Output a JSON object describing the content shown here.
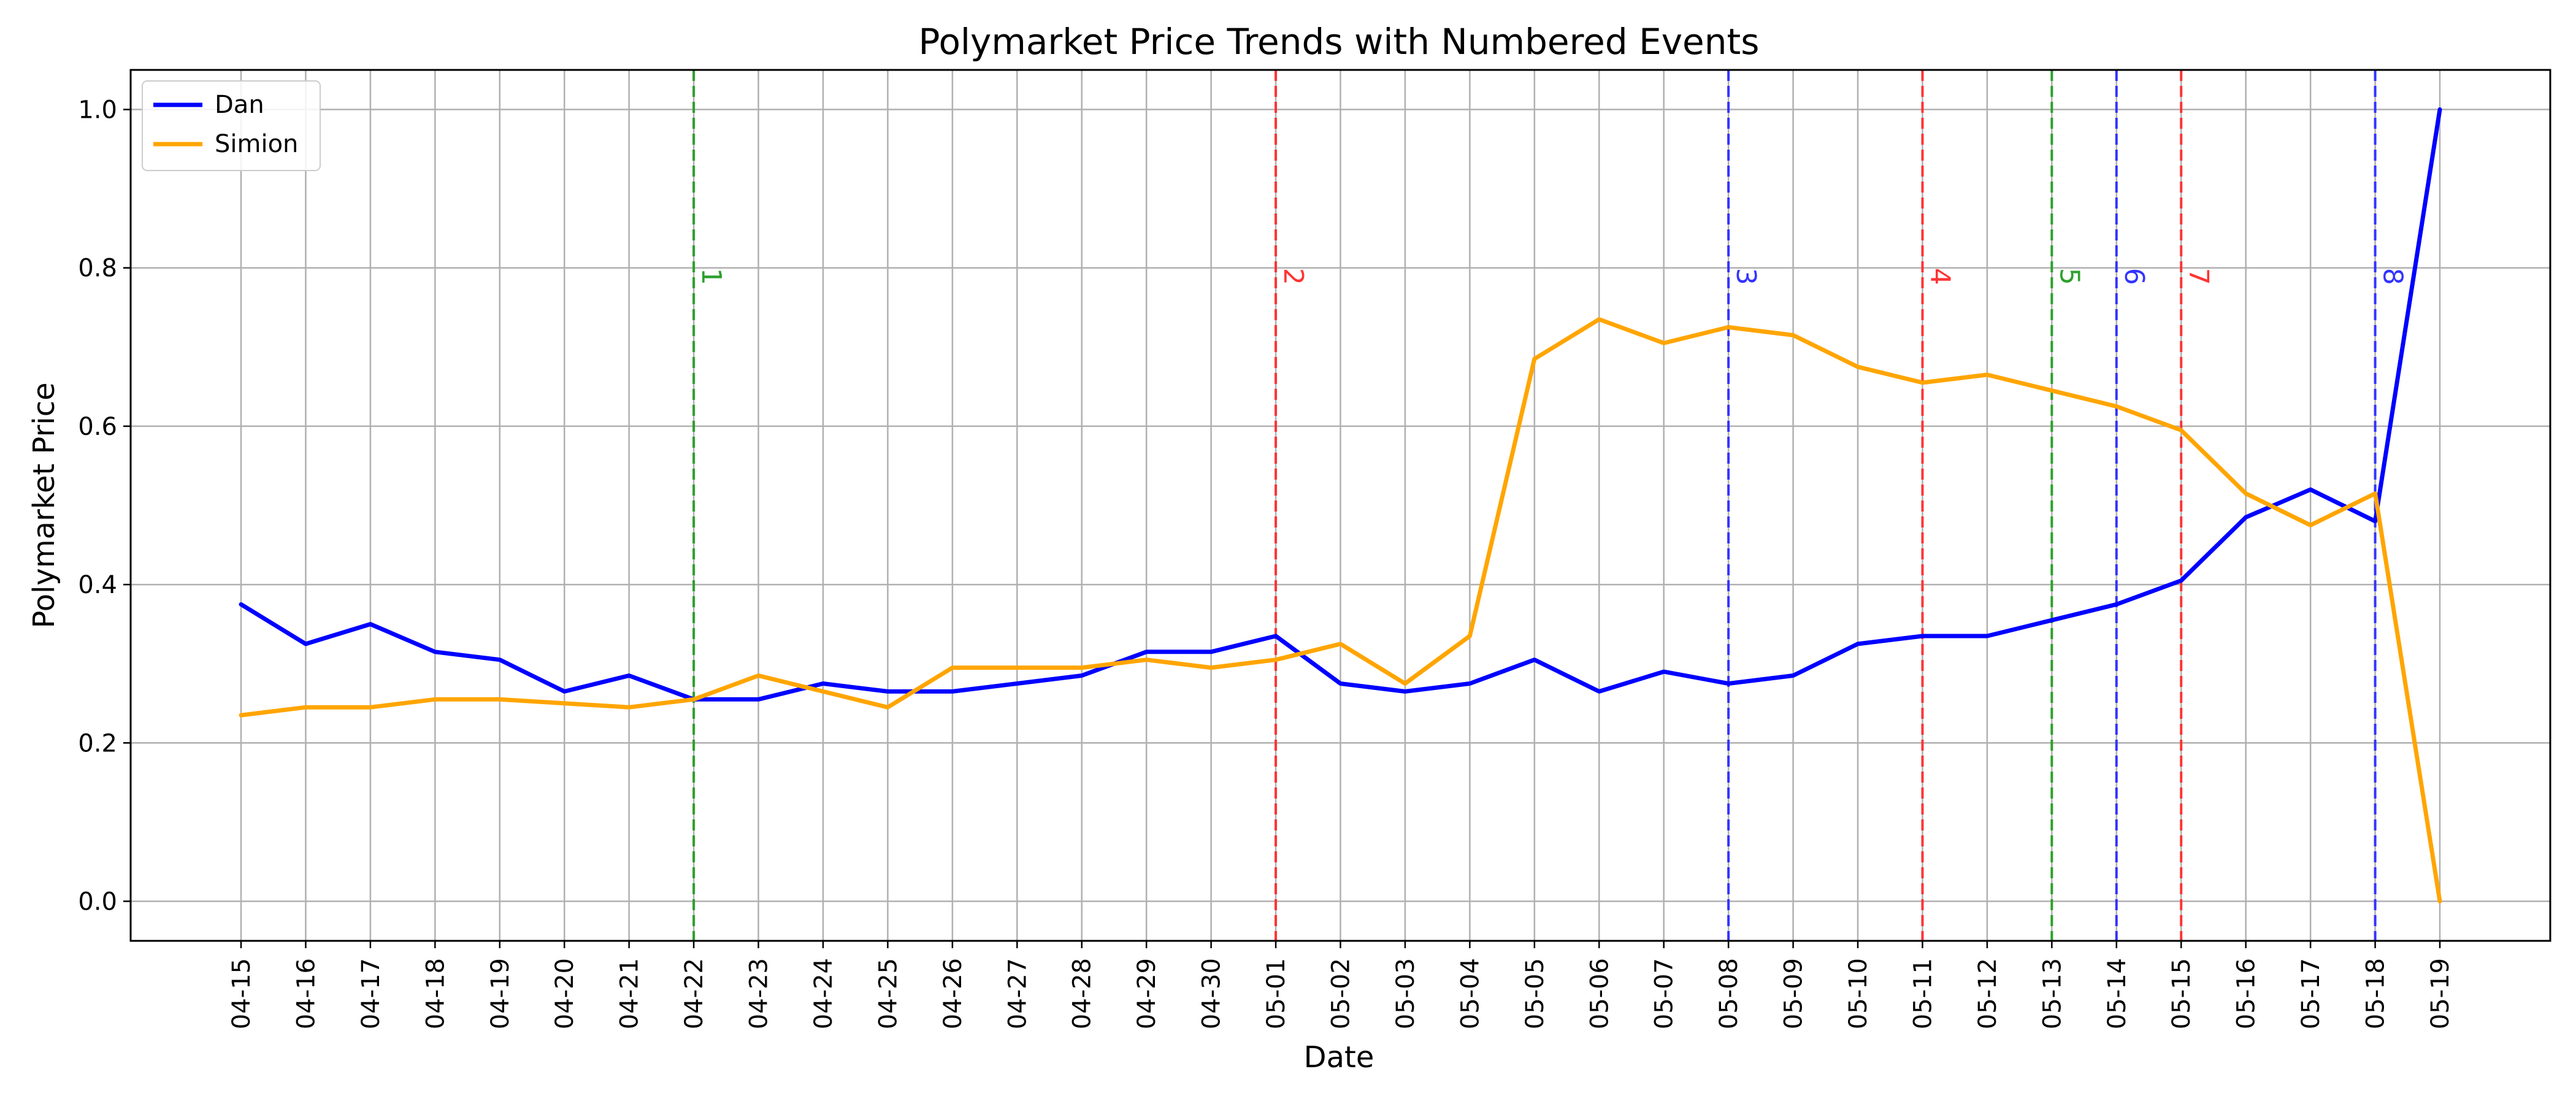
{
  "chart_data": {
    "type": "line",
    "title": "Polymarket Price Trends with Numbered Events",
    "xlabel": "Date",
    "ylabel": "Polymarket Price",
    "ylim": [
      -0.05,
      1.05
    ],
    "yticks": [
      "0.0",
      "0.2",
      "0.4",
      "0.6",
      "0.8",
      "1.0"
    ],
    "grid": true,
    "legend_position": "top-left",
    "x": [
      "04-15",
      "04-16",
      "04-17",
      "04-18",
      "04-19",
      "04-20",
      "04-21",
      "04-22",
      "04-23",
      "04-24",
      "04-25",
      "04-26",
      "04-27",
      "04-28",
      "04-29",
      "04-30",
      "05-01",
      "05-02",
      "05-03",
      "05-04",
      "05-05",
      "05-06",
      "05-07",
      "05-08",
      "05-09",
      "05-10",
      "05-11",
      "05-12",
      "05-13",
      "05-14",
      "05-15",
      "05-16",
      "05-17",
      "05-18",
      "05-19"
    ],
    "series": [
      {
        "name": "Dan",
        "color": "#0000ff",
        "values": [
          0.375,
          0.325,
          0.35,
          0.315,
          0.305,
          0.265,
          0.285,
          0.255,
          0.255,
          0.275,
          0.265,
          0.265,
          0.275,
          0.285,
          0.315,
          0.315,
          0.335,
          0.275,
          0.265,
          0.275,
          0.305,
          0.265,
          0.29,
          0.275,
          0.285,
          0.325,
          0.335,
          0.335,
          0.355,
          0.375,
          0.405,
          0.485,
          0.52,
          0.48,
          1.0
        ]
      },
      {
        "name": "Simion",
        "color": "#ffa500",
        "values": [
          0.235,
          0.245,
          0.245,
          0.255,
          0.255,
          0.25,
          0.245,
          0.255,
          0.285,
          0.265,
          0.245,
          0.295,
          0.295,
          0.295,
          0.305,
          0.295,
          0.305,
          0.325,
          0.275,
          0.335,
          0.685,
          0.735,
          0.705,
          0.725,
          0.715,
          0.675,
          0.655,
          0.665,
          0.645,
          0.625,
          0.595,
          0.515,
          0.475,
          0.515,
          0.0
        ]
      }
    ],
    "events": [
      {
        "label": "1",
        "date": "04-22",
        "color": "#2ca02c"
      },
      {
        "label": "2",
        "date": "05-01",
        "color": "#ff3333"
      },
      {
        "label": "3",
        "date": "05-08",
        "color": "#3333ff"
      },
      {
        "label": "4",
        "date": "05-11",
        "color": "#ff3333"
      },
      {
        "label": "5",
        "date": "05-13",
        "color": "#2ca02c"
      },
      {
        "label": "6",
        "date": "05-14",
        "color": "#3333ff"
      },
      {
        "label": "7",
        "date": "05-15",
        "color": "#ff3333"
      },
      {
        "label": "8",
        "date": "05-18",
        "color": "#3333ff"
      }
    ],
    "event_label_y": 0.8
  }
}
